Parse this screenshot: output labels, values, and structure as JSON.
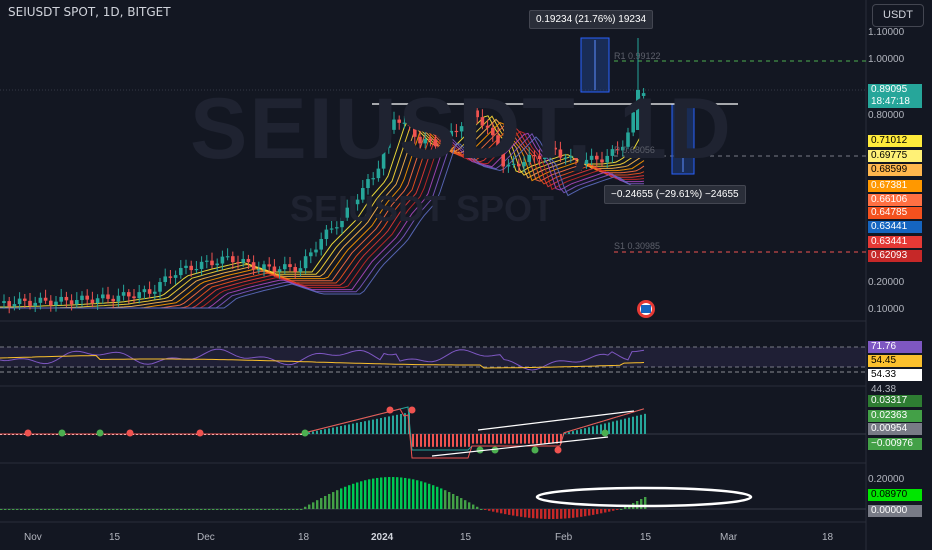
{
  "header": {
    "symbol": "SEIUSDT SPOT, 1D, BITGET",
    "currency_button": "USDT"
  },
  "watermark": {
    "line1": "SEIUSDT, 1D",
    "line2": "SEIUSDT SPOT"
  },
  "tooltips": {
    "top": "0.19234 (21.76%) 19234",
    "bottom": "−0.24655 (−29.61%) −24655"
  },
  "hlines": {
    "r1": "R1 0.99122",
    "p": "P 0.68056",
    "s1": "S1 0.30985"
  },
  "price_axis": [
    "1.10000",
    "1.00000",
    "0.80000",
    "0.20000",
    "0.10000"
  ],
  "price_axis_lower": "0.20000",
  "current_price": {
    "value": "0.89095",
    "countdown": "18:47:18"
  },
  "ma_badges": [
    {
      "value": "0.71012",
      "bg": "#ffeb3b",
      "fg": "#000000"
    },
    {
      "value": "0.69775",
      "bg": "#fff176",
      "fg": "#000000"
    },
    {
      "value": "0.68599",
      "bg": "#ffb74d",
      "fg": "#000000"
    },
    {
      "value": "0.67381",
      "bg": "#ff9800",
      "fg": "#ffffff"
    },
    {
      "value": "0.66106",
      "bg": "#ff7043",
      "fg": "#ffffff"
    },
    {
      "value": "0.64785",
      "bg": "#f4511e",
      "fg": "#ffffff"
    },
    {
      "value": "0.63441",
      "bg": "#1565c0",
      "fg": "#ffffff"
    },
    {
      "value": "0.63441",
      "bg": "#e53935",
      "fg": "#ffffff"
    },
    {
      "value": "0.62093",
      "bg": "#c62828",
      "fg": "#ffffff"
    }
  ],
  "rsi_badges": [
    {
      "value": "71.76",
      "bg": "#7e57c2",
      "fg": "#ffffff"
    },
    {
      "value": "54.45",
      "bg": "#fbc02d",
      "fg": "#000000"
    },
    {
      "value": "54.33",
      "bg": "#ffffff",
      "fg": "#000000"
    },
    {
      "value": "44.38",
      "bg": "#131722",
      "fg": "#b2b5be"
    }
  ],
  "macd_badges": [
    {
      "value": "0.03317",
      "bg": "#2e7d32",
      "fg": "#ffffff"
    },
    {
      "value": "0.02363",
      "bg": "#43a047",
      "fg": "#ffffff"
    },
    {
      "value": "0.00954",
      "bg": "#787b86",
      "fg": "#ffffff"
    },
    {
      "value": "−0.00976",
      "bg": "#43a047",
      "fg": "#ffffff"
    }
  ],
  "hist_badges": [
    {
      "value": "0.08970",
      "bg": "#00e600",
      "fg": "#000000"
    },
    {
      "value": "0.00000",
      "bg": "#787b86",
      "fg": "#ffffff"
    }
  ],
  "time_axis": [
    "Nov",
    "15",
    "Dec",
    "18",
    "2024",
    "15",
    "Feb",
    "15",
    "Mar",
    "18"
  ],
  "colors": {
    "up": "#26a69a",
    "down": "#ef5350",
    "bg": "#131722"
  }
}
